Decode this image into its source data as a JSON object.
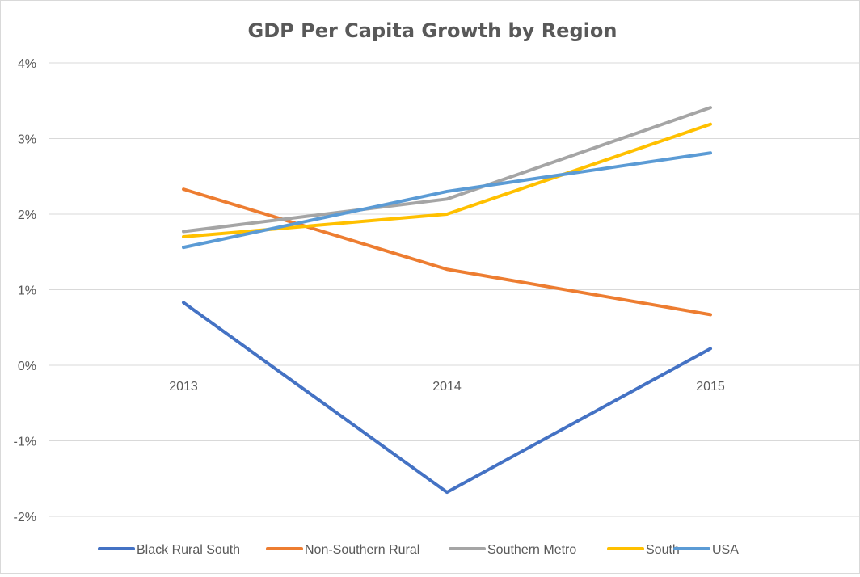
{
  "chart_data": {
    "type": "line",
    "title": "GDP Per Capita Growth by Region",
    "xlabel": "",
    "ylabel": "",
    "categories": [
      "2013",
      "2014",
      "2015"
    ],
    "ylim": [
      -2,
      4
    ],
    "yticks": [
      -2,
      -1,
      0,
      1,
      2,
      3,
      4
    ],
    "ytick_labels": [
      "-2%",
      "-1%",
      "0%",
      "1%",
      "2%",
      "3%",
      "4%"
    ],
    "grid": true,
    "legend": "bottom",
    "series": [
      {
        "name": "Black Rural South",
        "values": [
          0.83,
          -1.68,
          0.22
        ],
        "color": "#4472C4"
      },
      {
        "name": "Non-Southern Rural",
        "values": [
          2.33,
          1.27,
          0.67
        ],
        "color": "#ED7D31"
      },
      {
        "name": "Southern Metro",
        "values": [
          1.77,
          2.2,
          3.41
        ],
        "color": "#A5A5A5"
      },
      {
        "name": "South",
        "values": [
          1.7,
          2.0,
          3.19
        ],
        "color": "#FFC000"
      },
      {
        "name": "USA",
        "values": [
          1.56,
          2.3,
          2.81
        ],
        "color": "#5B9BD5"
      }
    ]
  }
}
